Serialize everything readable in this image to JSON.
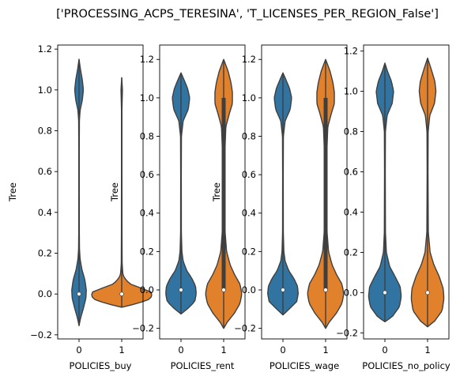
{
  "chart_data": {
    "type": "violin",
    "suptitle": "['PROCESSING_ACPS_TERESINA', 'T_LICENSES_PER_REGION_False']",
    "series_colors": {
      "0": "#3274a1",
      "1": "#e1812c"
    },
    "panels": [
      {
        "xlabel": "POLICIES_buy",
        "ylabel": "Tree",
        "categories": [
          "0",
          "1"
        ],
        "ylim": [
          -0.22,
          1.22
        ],
        "yticks": [
          -0.2,
          0.0,
          0.2,
          0.4,
          0.6,
          0.8,
          1.0,
          1.2
        ],
        "ytick_labels": [
          "−0.2",
          "0.0",
          "0.2",
          "0.4",
          "0.6",
          "0.8",
          "1.0",
          "1.2"
        ],
        "violins": [
          {
            "category": "0",
            "median": 0.0,
            "q1": 0.0,
            "q3": 0.0,
            "range": [
              -0.155,
              1.15
            ],
            "profile": [
              [
                -0.155,
                0
              ],
              [
                -0.12,
                0.04
              ],
              [
                -0.07,
                0.12
              ],
              [
                -0.02,
                0.19
              ],
              [
                0.02,
                0.2
              ],
              [
                0.07,
                0.16
              ],
              [
                0.12,
                0.08
              ],
              [
                0.17,
                0.03
              ],
              [
                0.22,
                0.012
              ],
              [
                0.3,
                0.008
              ],
              [
                0.5,
                0.006
              ],
              [
                0.7,
                0.006
              ],
              [
                0.85,
                0.01
              ],
              [
                0.9,
                0.03
              ],
              [
                0.95,
                0.09
              ],
              [
                1.0,
                0.12
              ],
              [
                1.05,
                0.09
              ],
              [
                1.1,
                0.04
              ],
              [
                1.15,
                0
              ]
            ]
          },
          {
            "category": "1",
            "median": 0.0,
            "q1": 0.0,
            "q3": 0.0,
            "range": [
              -0.065,
              1.06
            ],
            "profile": [
              [
                -0.065,
                0
              ],
              [
                -0.05,
                0.35
              ],
              [
                -0.03,
                0.72
              ],
              [
                -0.01,
                0.84
              ],
              [
                0.01,
                0.8
              ],
              [
                0.03,
                0.52
              ],
              [
                0.05,
                0.22
              ],
              [
                0.08,
                0.07
              ],
              [
                0.1,
                0.03
              ],
              [
                0.15,
                0.012
              ],
              [
                0.3,
                0.008
              ],
              [
                0.6,
                0.006
              ],
              [
                0.9,
                0.006
              ],
              [
                1.0,
                0.02
              ],
              [
                1.06,
                0
              ]
            ]
          }
        ]
      },
      {
        "xlabel": "POLICIES_rent",
        "ylabel": "Tree",
        "categories": [
          "0",
          "1"
        ],
        "ylim": [
          -0.255,
          1.275
        ],
        "yticks": [
          -0.2,
          0.0,
          0.2,
          0.4,
          0.6,
          0.8,
          1.0,
          1.2
        ],
        "ytick_labels": [
          "−0.2",
          "0.0",
          "0.2",
          "0.4",
          "0.6",
          "0.8",
          "1.0",
          "1.2"
        ],
        "violins": [
          {
            "category": "0",
            "median": 0.0,
            "q1": 0.0,
            "q3": 0.0,
            "range": [
              -0.125,
              1.13
            ],
            "profile": [
              [
                -0.125,
                0
              ],
              [
                -0.1,
                0.17
              ],
              [
                -0.06,
                0.38
              ],
              [
                -0.02,
                0.42
              ],
              [
                0.02,
                0.4
              ],
              [
                0.06,
                0.3
              ],
              [
                0.1,
                0.16
              ],
              [
                0.15,
                0.06
              ],
              [
                0.2,
                0.025
              ],
              [
                0.3,
                0.01
              ],
              [
                0.6,
                0.008
              ],
              [
                0.8,
                0.012
              ],
              [
                0.88,
                0.06
              ],
              [
                0.94,
                0.2
              ],
              [
                1.0,
                0.24
              ],
              [
                1.05,
                0.18
              ],
              [
                1.1,
                0.07
              ],
              [
                1.13,
                0
              ]
            ]
          },
          {
            "category": "1",
            "median": 0.0,
            "q1": 0.0,
            "q3": 1.0,
            "range": [
              -0.2,
              1.2
            ],
            "profile": [
              [
                -0.2,
                0
              ],
              [
                -0.17,
                0.09
              ],
              [
                -0.12,
                0.3
              ],
              [
                -0.07,
                0.45
              ],
              [
                -0.02,
                0.5
              ],
              [
                0.03,
                0.45
              ],
              [
                0.08,
                0.3
              ],
              [
                0.13,
                0.18
              ],
              [
                0.2,
                0.08
              ],
              [
                0.3,
                0.04
              ],
              [
                0.5,
                0.03
              ],
              [
                0.7,
                0.03
              ],
              [
                0.85,
                0.06
              ],
              [
                0.92,
                0.16
              ],
              [
                0.97,
                0.24
              ],
              [
                1.03,
                0.24
              ],
              [
                1.08,
                0.2
              ],
              [
                1.14,
                0.12
              ],
              [
                1.2,
                0
              ]
            ]
          }
        ]
      },
      {
        "xlabel": "POLICIES_wage",
        "ylabel": "Tree",
        "categories": [
          "0",
          "1"
        ],
        "ylim": [
          -0.255,
          1.275
        ],
        "yticks": [
          -0.2,
          0.0,
          0.2,
          0.4,
          0.6,
          0.8,
          1.0,
          1.2
        ],
        "ytick_labels": [
          "−0.2",
          "0.0",
          "0.2",
          "0.4",
          "0.6",
          "0.8",
          "1.0",
          "1.2"
        ],
        "violins": [
          {
            "category": "0",
            "median": 0.0,
            "q1": 0.0,
            "q3": 0.0,
            "range": [
              -0.13,
              1.13
            ],
            "profile": [
              [
                -0.13,
                0
              ],
              [
                -0.1,
                0.17
              ],
              [
                -0.06,
                0.38
              ],
              [
                -0.02,
                0.42
              ],
              [
                0.02,
                0.4
              ],
              [
                0.06,
                0.3
              ],
              [
                0.1,
                0.16
              ],
              [
                0.15,
                0.06
              ],
              [
                0.2,
                0.025
              ],
              [
                0.3,
                0.01
              ],
              [
                0.6,
                0.008
              ],
              [
                0.8,
                0.012
              ],
              [
                0.88,
                0.06
              ],
              [
                0.94,
                0.2
              ],
              [
                1.0,
                0.24
              ],
              [
                1.05,
                0.18
              ],
              [
                1.1,
                0.07
              ],
              [
                1.13,
                0
              ]
            ]
          },
          {
            "category": "1",
            "median": 0.0,
            "q1": 0.0,
            "q3": 1.0,
            "range": [
              -0.2,
              1.2
            ],
            "profile": [
              [
                -0.2,
                0
              ],
              [
                -0.17,
                0.09
              ],
              [
                -0.12,
                0.3
              ],
              [
                -0.07,
                0.45
              ],
              [
                -0.02,
                0.5
              ],
              [
                0.03,
                0.45
              ],
              [
                0.08,
                0.3
              ],
              [
                0.13,
                0.18
              ],
              [
                0.2,
                0.08
              ],
              [
                0.3,
                0.04
              ],
              [
                0.5,
                0.03
              ],
              [
                0.7,
                0.03
              ],
              [
                0.85,
                0.06
              ],
              [
                0.92,
                0.16
              ],
              [
                0.97,
                0.24
              ],
              [
                1.03,
                0.24
              ],
              [
                1.08,
                0.2
              ],
              [
                1.14,
                0.12
              ],
              [
                1.2,
                0
              ]
            ]
          }
        ]
      },
      {
        "xlabel": "POLICIES_no_policy",
        "ylabel": "",
        "categories": [
          "0",
          "1"
        ],
        "ylim": [
          -0.23,
          1.23
        ],
        "yticks": [
          -0.2,
          0.0,
          0.2,
          0.4,
          0.6,
          0.8,
          1.0,
          1.2
        ],
        "ytick_labels": [
          "−0.2",
          "0.0",
          "0.2",
          "0.4",
          "0.6",
          "0.8",
          "1.0",
          "1.2"
        ],
        "violins": [
          {
            "category": "0",
            "median": 0.0,
            "q1": 0.0,
            "q3": 0.0,
            "range": [
              -0.145,
              1.14
            ],
            "profile": [
              [
                -0.145,
                0
              ],
              [
                -0.12,
                0.2
              ],
              [
                -0.07,
                0.4
              ],
              [
                -0.02,
                0.45
              ],
              [
                0.03,
                0.42
              ],
              [
                0.08,
                0.28
              ],
              [
                0.13,
                0.13
              ],
              [
                0.2,
                0.04
              ],
              [
                0.3,
                0.015
              ],
              [
                0.6,
                0.01
              ],
              [
                0.8,
                0.014
              ],
              [
                0.88,
                0.06
              ],
              [
                0.94,
                0.2
              ],
              [
                1.0,
                0.24
              ],
              [
                1.05,
                0.18
              ],
              [
                1.1,
                0.07
              ],
              [
                1.14,
                0
              ]
            ]
          },
          {
            "category": "1",
            "median": 0.0,
            "q1": 0.0,
            "q3": 0.0,
            "range": [
              -0.17,
              1.165
            ],
            "profile": [
              [
                -0.17,
                0
              ],
              [
                -0.14,
                0.2
              ],
              [
                -0.09,
                0.4
              ],
              [
                -0.03,
                0.45
              ],
              [
                0.02,
                0.43
              ],
              [
                0.08,
                0.32
              ],
              [
                0.14,
                0.17
              ],
              [
                0.2,
                0.07
              ],
              [
                0.3,
                0.02
              ],
              [
                0.6,
                0.012
              ],
              [
                0.8,
                0.016
              ],
              [
                0.88,
                0.06
              ],
              [
                0.94,
                0.19
              ],
              [
                1.0,
                0.23
              ],
              [
                1.05,
                0.2
              ],
              [
                1.11,
                0.1
              ],
              [
                1.165,
                0
              ]
            ]
          }
        ]
      }
    ]
  }
}
